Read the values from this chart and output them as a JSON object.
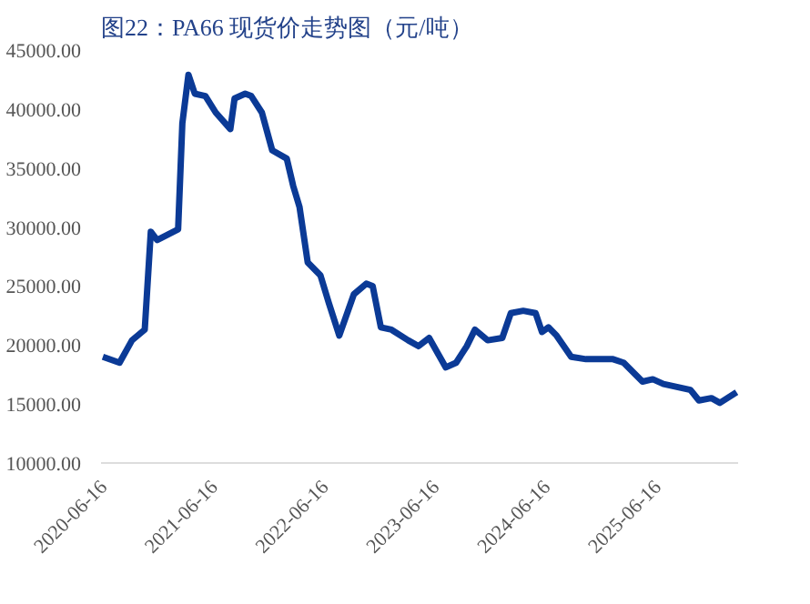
{
  "chart_data": {
    "type": "line",
    "title": "图22：PA66 现货价走势图（元/吨）",
    "x": [
      "2020-06-16",
      "2020-08-10",
      "2020-09-20",
      "2020-11-01",
      "2020-11-21",
      "2020-12-12",
      "2021-02-19",
      "2021-03-05",
      "2021-03-25",
      "2021-04-15",
      "2021-05-20",
      "2021-06-23",
      "2021-08-10",
      "2021-08-24",
      "2021-09-28",
      "2021-10-18",
      "2021-11-22",
      "2021-12-26",
      "2022-02-12",
      "2022-03-05",
      "2022-03-26",
      "2022-04-22",
      "2022-06-03",
      "2022-06-30",
      "2022-08-04",
      "2022-09-21",
      "2022-11-01",
      "2022-11-22",
      "2022-12-19",
      "2023-01-23",
      "2023-03-19",
      "2023-04-22",
      "2023-05-27",
      "2023-07-21",
      "2023-08-24",
      "2023-09-28",
      "2023-10-25",
      "2023-12-06",
      "2024-01-23",
      "2024-02-20",
      "2024-04-01",
      "2024-05-12",
      "2024-06-02",
      "2024-06-23",
      "2024-07-20",
      "2024-09-06",
      "2024-10-25",
      "2025-01-22",
      "2025-02-26",
      "2025-04-29",
      "2025-06-02",
      "2025-07-07",
      "2025-10-04",
      "2025-11-01",
      "2025-12-12",
      "2026-01-09",
      "2026-03-05"
    ],
    "series": [
      {
        "color": "#0b3a96",
        "values": [
          19000,
          18500,
          20400,
          21300,
          29600,
          28900,
          29800,
          38800,
          42900,
          41300,
          41100,
          39700,
          38300,
          40900,
          41300,
          41100,
          39700,
          36500,
          35800,
          33500,
          31700,
          27000,
          25900,
          23600,
          20800,
          24300,
          25200,
          25000,
          21500,
          21300,
          20400,
          19900,
          20600,
          18100,
          18500,
          19900,
          21300,
          20400,
          20600,
          22700,
          22900,
          22700,
          21100,
          21500,
          20800,
          19000,
          18800,
          18800,
          18500,
          16900,
          17100,
          16700,
          16200,
          15300,
          15500,
          15100,
          16000
        ]
      }
    ],
    "xlim": [
      "2020-06-10",
      "2026-03-10"
    ],
    "xticks": [
      "2020-06-16",
      "2021-06-16",
      "2022-06-16",
      "2023-06-16",
      "2024-06-16",
      "2025-06-16"
    ],
    "ylim": [
      10000,
      45000
    ],
    "yticks": [
      {
        "value": 10000,
        "label": "10000.00"
      },
      {
        "value": 15000,
        "label": "15000.00"
      },
      {
        "value": 20000,
        "label": "20000.00"
      },
      {
        "value": 25000,
        "label": "25000.00"
      },
      {
        "value": 30000,
        "label": "30000.00"
      },
      {
        "value": 35000,
        "label": "35000.00"
      },
      {
        "value": 40000,
        "label": "40000.00"
      },
      {
        "value": 45000,
        "label": "45000.00"
      }
    ],
    "grid": false,
    "line_style": "solid"
  }
}
